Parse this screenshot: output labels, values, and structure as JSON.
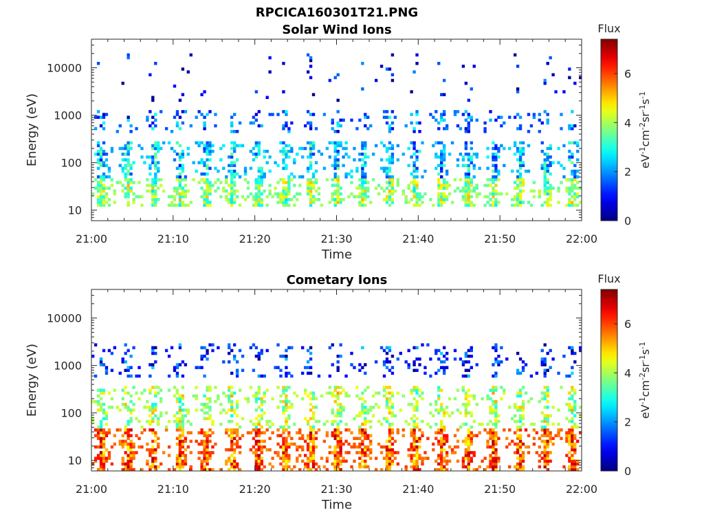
{
  "figure": {
    "title": "RPCICA160301T21.PNG"
  },
  "chart_data": [
    {
      "type": "heatmap",
      "title": "Solar Wind Ions",
      "xlabel": "Time",
      "ylabel": "Energy (eV)",
      "x_ticks": [
        "21:00",
        "21:10",
        "21:20",
        "21:30",
        "21:40",
        "21:50",
        "22:00"
      ],
      "x_range": [
        "21:00",
        "22:00"
      ],
      "y_scale": "log",
      "y_ticks": [
        10,
        100,
        1000,
        10000
      ],
      "y_tick_labels": [
        "10",
        "100",
        "1000",
        "10000"
      ],
      "y_range": [
        6,
        40000
      ],
      "colorbar": {
        "label": "Flux",
        "unit": "eV-1 cm-2 sr-1 s-1",
        "ticks": [
          "0",
          "2",
          "4",
          "6"
        ],
        "range": [
          0,
          7.4
        ]
      },
      "pulse_period_min": 3.2,
      "bands": [
        {
          "energy_range": [
            12,
            45
          ],
          "flux": 3.8
        },
        {
          "energy_range": [
            50,
            300
          ],
          "flux": 2.3
        },
        {
          "energy_range": [
            450,
            1300
          ],
          "flux": 1.6
        },
        {
          "energy_range": [
            2000,
            20000
          ],
          "flux": 0.7
        }
      ]
    },
    {
      "type": "heatmap",
      "title": "Cometary Ions",
      "xlabel": "Time",
      "ylabel": "Energy (eV)",
      "x_ticks": [
        "21:00",
        "21:10",
        "21:20",
        "21:30",
        "21:40",
        "21:50",
        "22:00"
      ],
      "x_range": [
        "21:00",
        "22:00"
      ],
      "y_scale": "log",
      "y_ticks": [
        10,
        100,
        1000,
        10000
      ],
      "y_tick_labels": [
        "10",
        "100",
        "1000",
        "10000"
      ],
      "y_range": [
        6,
        40000
      ],
      "colorbar": {
        "label": "Flux",
        "unit": "eV-1 cm-2 sr-1 s-1",
        "ticks": [
          "0",
          "2",
          "4",
          "6"
        ],
        "range": [
          0,
          7.4
        ]
      },
      "pulse_period_min": 3.2,
      "bands": [
        {
          "energy_range": [
            6,
            45
          ],
          "flux": 5.8
        },
        {
          "energy_range": [
            50,
            350
          ],
          "flux": 4.0
        },
        {
          "energy_range": [
            600,
            3000
          ],
          "flux": 1.2
        }
      ]
    }
  ]
}
